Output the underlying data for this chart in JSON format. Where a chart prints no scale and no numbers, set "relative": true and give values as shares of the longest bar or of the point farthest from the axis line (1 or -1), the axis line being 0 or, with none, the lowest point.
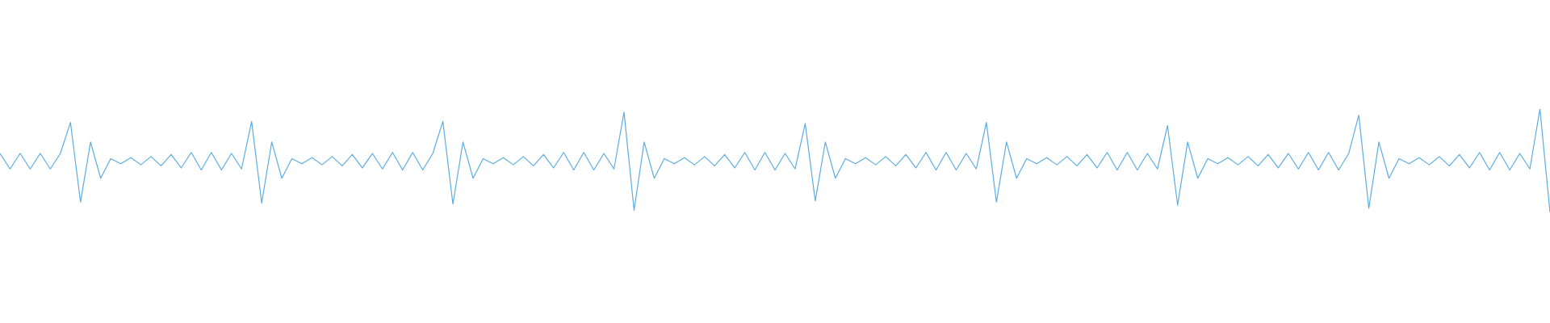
{
  "chart_data": {
    "type": "line",
    "relative": true,
    "color": "#5dade2",
    "categories": [
      null,
      null,
      null,
      null,
      null,
      null,
      null,
      null,
      null,
      null,
      null,
      null,
      null,
      null,
      null,
      null,
      null,
      null,
      null,
      null,
      null,
      null,
      null,
      null,
      null,
      null,
      null,
      null,
      null,
      null,
      null,
      null,
      null,
      null,
      null,
      null,
      null,
      null,
      null,
      null,
      null,
      null,
      null,
      null,
      null,
      null,
      null,
      null,
      null,
      null,
      null,
      null,
      null,
      null,
      null,
      null,
      null,
      null,
      null,
      null,
      null,
      null,
      null,
      null,
      null,
      null,
      null,
      null,
      null,
      null,
      null,
      null,
      null,
      null,
      null,
      null,
      null,
      null,
      null,
      null,
      null,
      null,
      null,
      null,
      null,
      null,
      null,
      null,
      null,
      null,
      null,
      null,
      null,
      null,
      null,
      null,
      null,
      null,
      null,
      null,
      null,
      null,
      null,
      null,
      null,
      null,
      null,
      null,
      null,
      null,
      null,
      null,
      null,
      null,
      null,
      null,
      null,
      null,
      null,
      null,
      null,
      null,
      null,
      null,
      null,
      null,
      null,
      null,
      null,
      null,
      null,
      null,
      null,
      null,
      null,
      null,
      null,
      null,
      null,
      null,
      null,
      null,
      null,
      null,
      null,
      null,
      null,
      null,
      null,
      null,
      null,
      null,
      null,
      null,
      null
    ],
    "values": [
      0.57,
      0.42,
      0.57,
      0.42,
      0.57,
      0.42,
      0.57,
      0.87,
      0.1,
      0.68,
      0.33,
      0.52,
      0.47,
      0.53,
      0.46,
      0.54,
      0.45,
      0.56,
      0.43,
      0.58,
      0.41,
      0.58,
      0.41,
      0.57,
      0.42,
      0.88,
      0.09,
      0.68,
      0.33,
      0.52,
      0.47,
      0.53,
      0.46,
      0.54,
      0.45,
      0.56,
      0.43,
      0.57,
      0.42,
      0.58,
      0.41,
      0.58,
      0.41,
      0.57,
      0.88,
      0.08,
      0.68,
      0.33,
      0.52,
      0.47,
      0.53,
      0.46,
      0.54,
      0.45,
      0.56,
      0.43,
      0.58,
      0.41,
      0.58,
      0.41,
      0.57,
      0.42,
      0.97,
      0.02,
      0.68,
      0.33,
      0.52,
      0.47,
      0.53,
      0.46,
      0.54,
      0.45,
      0.56,
      0.43,
      0.58,
      0.41,
      0.58,
      0.41,
      0.57,
      0.42,
      0.86,
      0.11,
      0.68,
      0.33,
      0.52,
      0.47,
      0.53,
      0.46,
      0.54,
      0.45,
      0.56,
      0.43,
      0.58,
      0.41,
      0.58,
      0.41,
      0.57,
      0.42,
      0.87,
      0.1,
      0.68,
      0.33,
      0.52,
      0.47,
      0.53,
      0.46,
      0.54,
      0.45,
      0.56,
      0.43,
      0.58,
      0.41,
      0.58,
      0.41,
      0.57,
      0.42,
      0.84,
      0.07,
      0.68,
      0.33,
      0.52,
      0.47,
      0.53,
      0.46,
      0.54,
      0.45,
      0.56,
      0.43,
      0.57,
      0.42,
      0.58,
      0.41,
      0.58,
      0.41,
      0.57,
      0.94,
      0.04,
      0.68,
      0.33,
      0.52,
      0.47,
      0.53,
      0.46,
      0.54,
      0.45,
      0.56,
      0.43,
      0.58,
      0.41,
      0.58,
      0.41,
      0.57,
      0.42,
      1,
      0
    ]
  }
}
